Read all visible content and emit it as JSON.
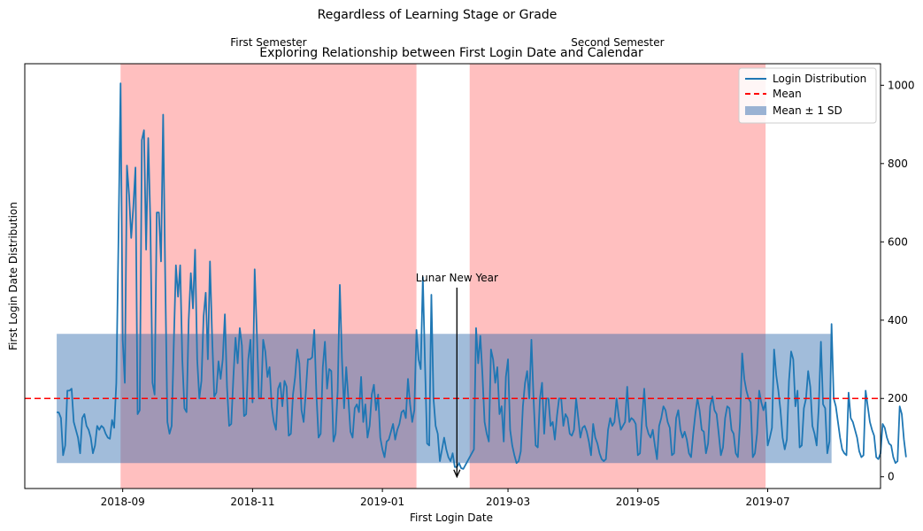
{
  "suptitle": "Regardless of Learning Stage or Grade",
  "chart_data": {
    "type": "line",
    "title": "Exploring Relationship between First Login Date and Calendar",
    "xlabel": "First Login Date",
    "ylabel": "First Login Date Distribution",
    "xlim": [
      "2018-07-17",
      "2019-08-23"
    ],
    "ylim": [
      -30,
      1055
    ],
    "y_axis_side": "right",
    "grid": false,
    "legend_placement": "top-right",
    "x_ticks": [
      "2018-09",
      "2018-11",
      "2019-01",
      "2019-03",
      "2019-05",
      "2019-07"
    ],
    "y_ticks": [
      0,
      200,
      400,
      600,
      800,
      1000
    ],
    "semesters": [
      {
        "name": "First Semester",
        "start": "2018-08-31",
        "end": "2019-01-17",
        "color": "#ff0000",
        "alpha": 0.25
      },
      {
        "name": "Second Semester",
        "start": "2019-02-11",
        "end": "2019-06-30",
        "color": "#ff0000",
        "alpha": 0.25
      }
    ],
    "annotation": {
      "text": "Lunar New Year",
      "date": "2019-02-05",
      "value": 0,
      "text_value": 490
    },
    "mean_line": {
      "value": 200,
      "color": "#ff0000"
    },
    "sd_band": {
      "lower": 35,
      "upper": 365,
      "start": "2018-08-01",
      "end": "2019-07-31",
      "color": "#1f5fa8"
    },
    "series": [
      {
        "name": "Login Distribution",
        "color": "#1f77b4",
        "start": "2018-08-01",
        "step_days": 1,
        "values": [
          165,
          164,
          150,
          55,
          80,
          220,
          220,
          225,
          140,
          120,
          100,
          60,
          150,
          160,
          130,
          120,
          100,
          60,
          80,
          130,
          120,
          130,
          125,
          110,
          100,
          97,
          145,
          125,
          240,
          600,
          1005,
          350,
          240,
          795,
          720,
          610,
          690,
          790,
          160,
          170,
          860,
          885,
          580,
          865,
          650,
          240,
          210,
          675,
          675,
          550,
          925,
          500,
          140,
          110,
          130,
          340,
          540,
          460,
          540,
          300,
          175,
          165,
          400,
          520,
          430,
          580,
          300,
          200,
          245,
          410,
          470,
          300,
          550,
          360,
          205,
          215,
          295,
          250,
          300,
          415,
          230,
          130,
          135,
          255,
          355,
          290,
          380,
          335,
          155,
          160,
          300,
          350,
          190,
          530,
          370,
          200,
          200,
          350,
          320,
          255,
          280,
          180,
          140,
          120,
          225,
          240,
          180,
          245,
          230,
          105,
          110,
          210,
          255,
          325,
          290,
          170,
          140,
          215,
          300,
          300,
          305,
          375,
          210,
          100,
          110,
          280,
          345,
          225,
          275,
          270,
          90,
          110,
          220,
          490,
          300,
          175,
          280,
          200,
          115,
          100,
          175,
          185,
          165,
          255,
          140,
          185,
          100,
          130,
          210,
          235,
          170,
          210,
          100,
          70,
          50,
          90,
          95,
          115,
          135,
          95,
          120,
          135,
          165,
          170,
          150,
          250,
          185,
          140,
          170,
          375,
          300,
          275,
          510,
          290,
          85,
          80,
          465,
          200,
          130,
          110,
          40,
          70,
          100,
          70,
          50,
          40,
          60,
          25,
          25,
          35,
          22,
          20,
          30,
          40,
          50,
          60,
          70,
          380,
          290,
          360,
          260,
          140,
          110,
          90,
          325,
          300,
          240,
          280,
          160,
          180,
          90,
          255,
          300,
          120,
          80,
          55,
          35,
          40,
          65,
          180,
          240,
          270,
          200,
          350,
          200,
          80,
          75,
          200,
          240,
          110,
          200,
          200,
          130,
          140,
          95,
          155,
          200,
          200,
          130,
          160,
          150,
          110,
          105,
          120,
          200,
          150,
          100,
          125,
          130,
          115,
          90,
          55,
          135,
          100,
          85,
          60,
          45,
          40,
          45,
          120,
          150,
          130,
          140,
          200,
          155,
          120,
          130,
          140,
          230,
          140,
          150,
          145,
          135,
          55,
          60,
          150,
          225,
          130,
          110,
          100,
          120,
          80,
          45,
          130,
          150,
          180,
          170,
          140,
          125,
          55,
          60,
          150,
          170,
          120,
          100,
          115,
          95,
          60,
          50,
          110,
          160,
          200,
          170,
          120,
          115,
          60,
          85,
          180,
          205,
          170,
          160,
          110,
          55,
          75,
          150,
          180,
          175,
          120,
          110,
          60,
          50,
          140,
          315,
          250,
          220,
          200,
          190,
          50,
          60,
          110,
          220,
          190,
          170,
          190,
          80,
          100,
          125,
          325,
          260,
          220,
          170,
          100,
          70,
          95,
          245,
          320,
          300,
          180,
          220,
          75,
          80,
          175,
          200,
          270,
          230,
          130,
          110,
          80,
          180,
          345,
          185,
          175,
          60,
          90,
          390,
          200,
          180,
          140,
          100,
          70,
          60,
          55,
          215,
          150,
          140,
          120,
          100,
          65,
          50,
          55,
          220,
          180,
          140,
          120,
          105,
          50,
          45,
          60,
          135,
          125,
          100,
          85,
          80,
          50,
          35,
          40,
          180,
          160,
          95,
          50
        ]
      }
    ]
  },
  "legend": {
    "line_label": "Login Distribution",
    "mean_label": "Mean",
    "band_label": "Mean ± 1 SD"
  }
}
